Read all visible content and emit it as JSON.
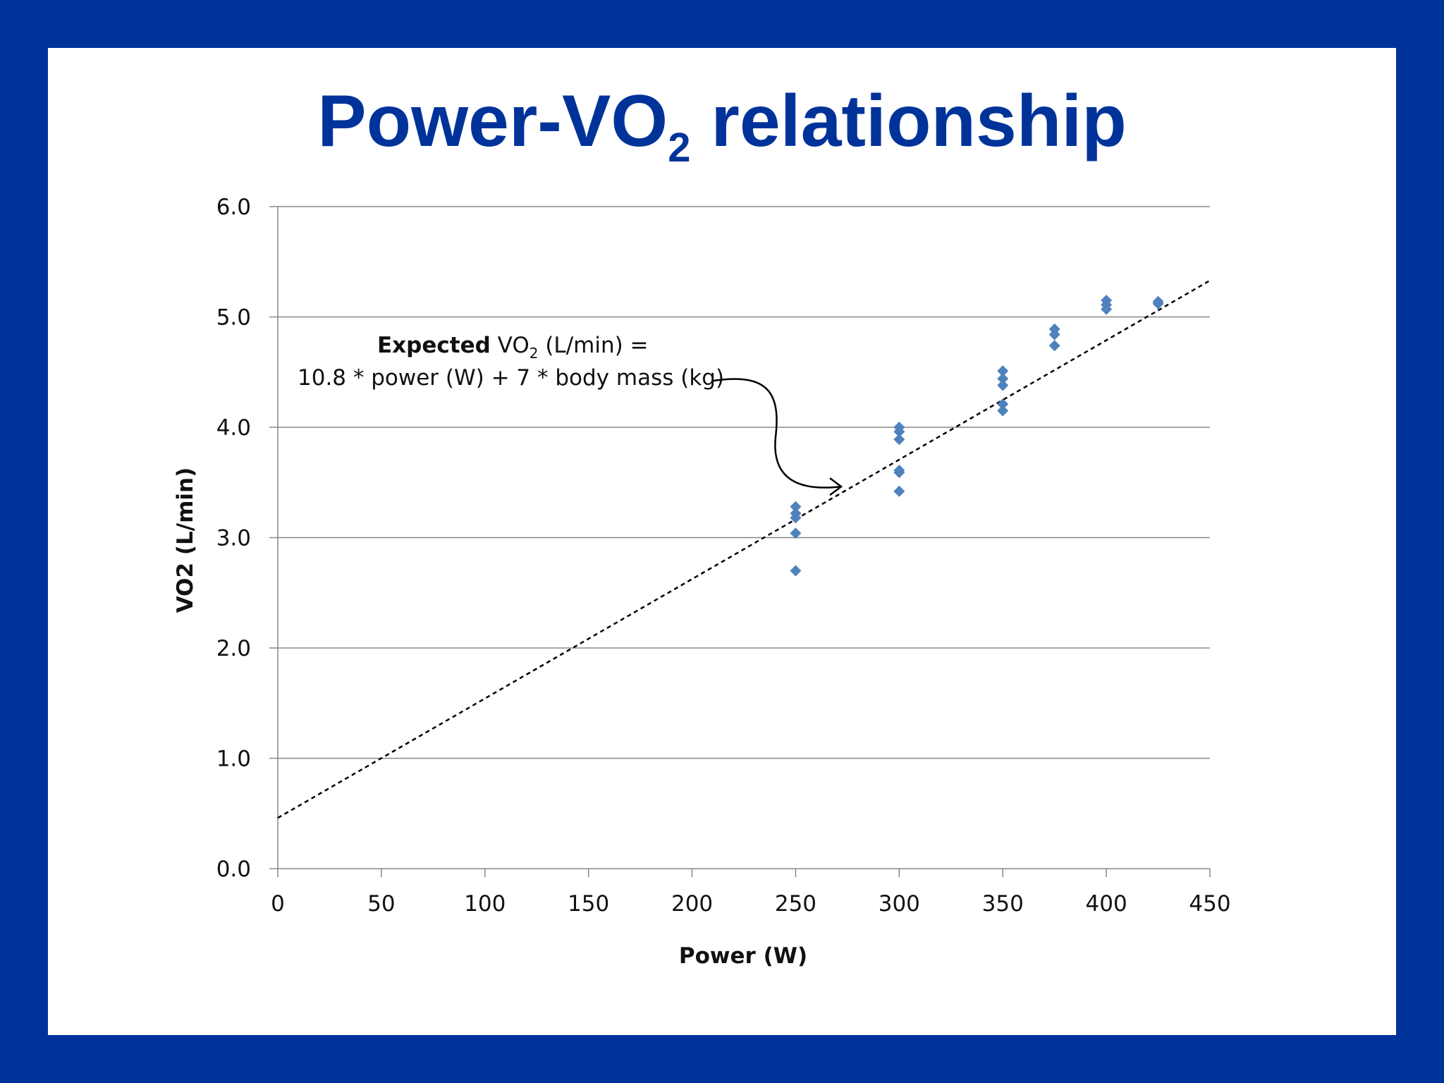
{
  "slide": {
    "title_main": "Power-VO",
    "title_sub": "2",
    "title_rest": " relationship"
  },
  "colors": {
    "frame": "#00339a",
    "title": "#00339a",
    "marker": "#4f81bd",
    "gridline": "#888888",
    "trendline": "#000000"
  },
  "chart_data": {
    "type": "scatter",
    "xlabel": "Power (W)",
    "ylabel": "VO2 (L/min)",
    "xlim": [
      0,
      450
    ],
    "ylim": [
      0,
      6
    ],
    "x_ticks": [
      "0",
      "50",
      "100",
      "150",
      "200",
      "250",
      "300",
      "350",
      "400",
      "450"
    ],
    "y_ticks": [
      "0.0",
      "1.0",
      "2.0",
      "3.0",
      "4.0",
      "5.0",
      "6.0"
    ],
    "grid": "horizontal",
    "marker": "diamond",
    "points": [
      {
        "x": 250,
        "y": 3.28
      },
      {
        "x": 250,
        "y": 3.22
      },
      {
        "x": 250,
        "y": 3.18
      },
      {
        "x": 250,
        "y": 3.04
      },
      {
        "x": 250,
        "y": 2.7
      },
      {
        "x": 300,
        "y": 4.0
      },
      {
        "x": 300,
        "y": 3.96
      },
      {
        "x": 300,
        "y": 3.89
      },
      {
        "x": 300,
        "y": 3.61
      },
      {
        "x": 300,
        "y": 3.59
      },
      {
        "x": 300,
        "y": 3.42
      },
      {
        "x": 350,
        "y": 4.51
      },
      {
        "x": 350,
        "y": 4.44
      },
      {
        "x": 350,
        "y": 4.38
      },
      {
        "x": 350,
        "y": 4.21
      },
      {
        "x": 350,
        "y": 4.15
      },
      {
        "x": 375,
        "y": 4.89
      },
      {
        "x": 375,
        "y": 4.84
      },
      {
        "x": 375,
        "y": 4.74
      },
      {
        "x": 400,
        "y": 5.15
      },
      {
        "x": 400,
        "y": 5.11
      },
      {
        "x": 400,
        "y": 5.07
      },
      {
        "x": 425,
        "y": 5.14
      },
      {
        "x": 425,
        "y": 5.12
      }
    ],
    "trendline": {
      "style": "dashed",
      "x": [
        0,
        450
      ],
      "y": [
        0.46,
        5.33
      ]
    },
    "annotation": {
      "bold": "Expected",
      "line1_a": " VO",
      "line1_sub": "2",
      "line1_b": " (L/min) =",
      "line2": "10.8 * power (W) + 7 * body mass (kg)",
      "arrow_target": {
        "x": 272,
        "y": 3.45
      }
    }
  }
}
